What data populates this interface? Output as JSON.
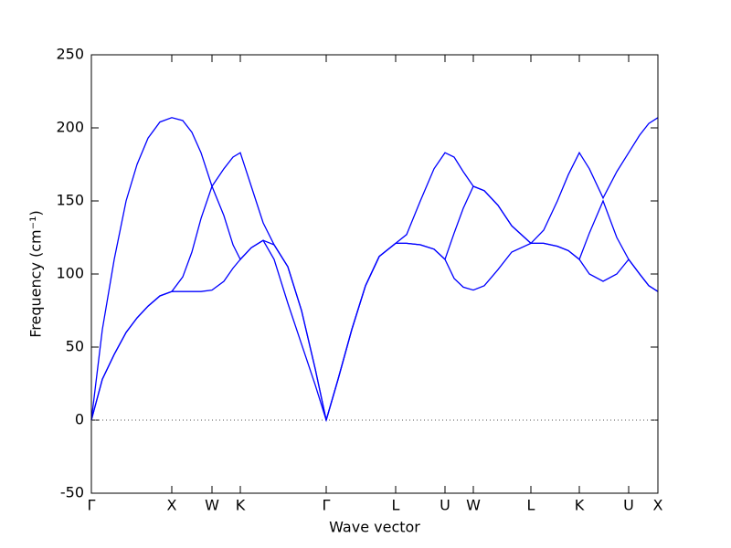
{
  "chart_data": {
    "type": "line",
    "x_label": "Wave vector",
    "y_label": "Frequency (cm⁻¹)",
    "x": [
      0,
      0.12,
      0.25,
      0.38,
      0.5,
      0.62,
      0.75,
      0.88,
      1.0,
      1.1,
      1.2,
      1.32,
      1.45,
      1.55,
      1.63,
      1.75,
      1.88,
      2.0,
      2.15,
      2.3,
      2.45,
      2.57,
      2.7,
      2.85,
      3.0,
      3.15,
      3.33,
      3.45,
      3.6,
      3.75,
      3.87,
      3.97,
      4.07,
      4.18,
      4.3,
      4.45,
      4.6,
      4.81,
      4.95,
      5.1,
      5.22,
      5.34,
      5.45,
      5.6,
      5.75,
      5.88,
      6.0,
      6.1,
      6.2
    ],
    "series": [
      {
        "color": "#0000ff",
        "values": [
          0,
          62,
          110,
          150,
          175,
          193,
          204,
          207,
          205,
          197,
          183,
          160,
          172,
          180,
          183,
          160,
          135,
          120,
          105,
          75,
          35,
          0,
          28,
          62,
          92,
          112,
          121,
          127,
          150,
          172,
          183,
          180,
          170,
          160,
          157,
          147,
          133,
          121,
          130,
          150,
          168,
          183,
          172,
          152,
          170,
          183,
          195,
          203,
          207
        ]
      },
      {
        "color": "#0000ff",
        "values": [
          0,
          28,
          45,
          60,
          70,
          78,
          85,
          88,
          98,
          115,
          138,
          160,
          140,
          120,
          110,
          118,
          123,
          120,
          105,
          75,
          35,
          0,
          28,
          62,
          92,
          112,
          121,
          121,
          120,
          117,
          110,
          128,
          145,
          160,
          157,
          147,
          133,
          121,
          121,
          119,
          116,
          110,
          128,
          150,
          125,
          110,
          100,
          92,
          88
        ]
      },
      {
        "color": "#0000ff",
        "values": [
          0,
          28,
          45,
          60,
          70,
          78,
          85,
          88,
          88,
          88,
          88,
          89,
          95,
          104,
          110,
          118,
          123,
          110,
          80,
          52,
          24,
          0,
          28,
          62,
          92,
          112,
          121,
          121,
          120,
          117,
          110,
          97,
          91,
          89,
          92,
          103,
          115,
          121,
          121,
          119,
          116,
          110,
          100,
          95,
          100,
          110,
          100,
          92,
          88
        ]
      }
    ],
    "xlim": [
      0,
      6.2
    ],
    "xticks": [
      {
        "value": 0,
        "label": "Γ"
      },
      {
        "value": 0.88,
        "label": "X"
      },
      {
        "value": 1.32,
        "label": "W"
      },
      {
        "value": 1.63,
        "label": "K"
      },
      {
        "value": 2.57,
        "label": "Γ"
      },
      {
        "value": 3.33,
        "label": "L"
      },
      {
        "value": 3.87,
        "label": "U"
      },
      {
        "value": 4.18,
        "label": "W"
      },
      {
        "value": 4.81,
        "label": "L"
      },
      {
        "value": 5.34,
        "label": "K"
      },
      {
        "value": 5.88,
        "label": "U"
      },
      {
        "value": 6.2,
        "label": "X"
      }
    ],
    "ylim": [
      -50,
      250
    ],
    "yticks": [
      -50,
      0,
      50,
      100,
      150,
      200,
      250
    ],
    "zero_line": true
  }
}
